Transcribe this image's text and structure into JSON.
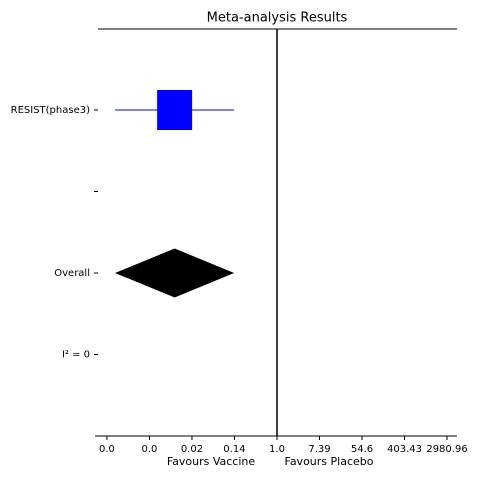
{
  "chart_data": {
    "type": "forest",
    "title": "Meta-analysis Results",
    "categories": [
      "RESIST(phase3)",
      null,
      "Overall",
      "I² = 0"
    ],
    "estimate": [
      0.0081,
      null,
      0.0081,
      null
    ],
    "ci_low": [
      0.00049,
      null,
      0.00049,
      null
    ],
    "ci_high": [
      0.133,
      null,
      0.133,
      null
    ],
    "marker": [
      "box",
      null,
      "diamond",
      null
    ],
    "color": "#0000ff",
    "summary_color": "#000000",
    "reference_line": 1,
    "xscale": "log",
    "xlim": [
      0.00022,
      4770
    ],
    "xticks": [
      {
        "value": 0.000335,
        "label": "0.0"
      },
      {
        "value": 0.00248,
        "label": "0.0"
      },
      {
        "value": 0.0183,
        "label": "0.02"
      },
      {
        "value": 0.135,
        "label": "0.14"
      },
      {
        "value": 1,
        "label": "1.0"
      },
      7.39,
      54.6,
      403.43,
      2980.96
    ],
    "xlabels": [
      "Favours Vaccine",
      "Favours Placebo"
    ]
  }
}
